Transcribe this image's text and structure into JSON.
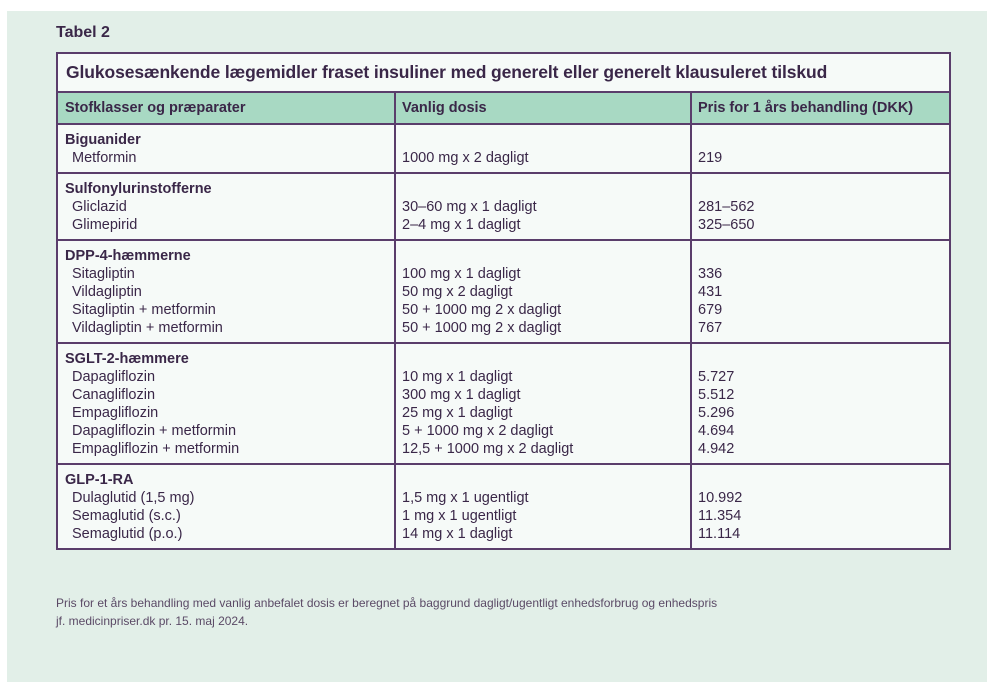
{
  "tabel_label": "Tabel 2",
  "table_title": "Glukosesænkende lægemidler fraset insuliner med generelt eller generelt klausuleret tilskud",
  "headers": [
    "Stofklasser og præparater",
    "Vanlig dosis",
    "Pris for 1 års behandling (DKK)"
  ],
  "groups": [
    {
      "name": "Biguanider",
      "drugs": [
        {
          "name": "Metformin",
          "dose": "1000 mg x 2 dagligt",
          "price": "219"
        }
      ]
    },
    {
      "name": "Sulfonylurinstofferne",
      "drugs": [
        {
          "name": "Gliclazid",
          "dose": "30–60 mg x 1 dagligt",
          "price": "281–562"
        },
        {
          "name": "Glimepirid",
          "dose": "2–4 mg x 1 dagligt",
          "price": "325–650"
        }
      ]
    },
    {
      "name": "DPP-4-hæmmerne",
      "drugs": [
        {
          "name": "Sitagliptin",
          "dose": "100 mg x 1 dagligt",
          "price": "336"
        },
        {
          "name": "Vildagliptin",
          "dose": "50 mg x 2 dagligt",
          "price": "431"
        },
        {
          "name": "Sitagliptin + metformin",
          "dose": "50 + 1000 mg 2 x dagligt",
          "price": "679"
        },
        {
          "name": "Vildagliptin + metformin",
          "dose": "50 + 1000 mg 2 x dagligt",
          "price": "767"
        }
      ]
    },
    {
      "name": "SGLT-2-hæmmere",
      "drugs": [
        {
          "name": "Dapagliflozin",
          "dose": "10 mg x 1 dagligt",
          "price": "5.727"
        },
        {
          "name": "Canagliflozin",
          "dose": "300 mg x 1 dagligt",
          "price": "5.512"
        },
        {
          "name": "Empagliflozin",
          "dose": "25 mg x 1 dagligt",
          "price": "5.296"
        },
        {
          "name": "Dapagliflozin + metformin",
          "dose": "5 + 1000 mg x 2 dagligt",
          "price": "4.694"
        },
        {
          "name": "Empagliflozin + metformin",
          "dose": "12,5 + 1000 mg x 2 dagligt",
          "price": "4.942"
        }
      ]
    },
    {
      "name": "GLP-1-RA",
      "drugs": [
        {
          "name": "Dulaglutid (1,5 mg)",
          "dose": "1,5 mg x 1 ugentligt",
          "price": "10.992"
        },
        {
          "name": "Semaglutid (s.c.)",
          "dose": "1 mg x 1 ugentligt",
          "price": "11.354"
        },
        {
          "name": "Semaglutid (p.o.)",
          "dose": "14 mg x 1 dagligt",
          "price": "11.114"
        }
      ]
    }
  ],
  "footnote_line1": "Pris for et års behandling med vanlig anbefalet dosis er beregnet på baggrund dagligt/ugentligt enhedsforbrug og enhedspris",
  "footnote_line2": "jf. medicinpriser.dk pr. 15. maj 2024."
}
